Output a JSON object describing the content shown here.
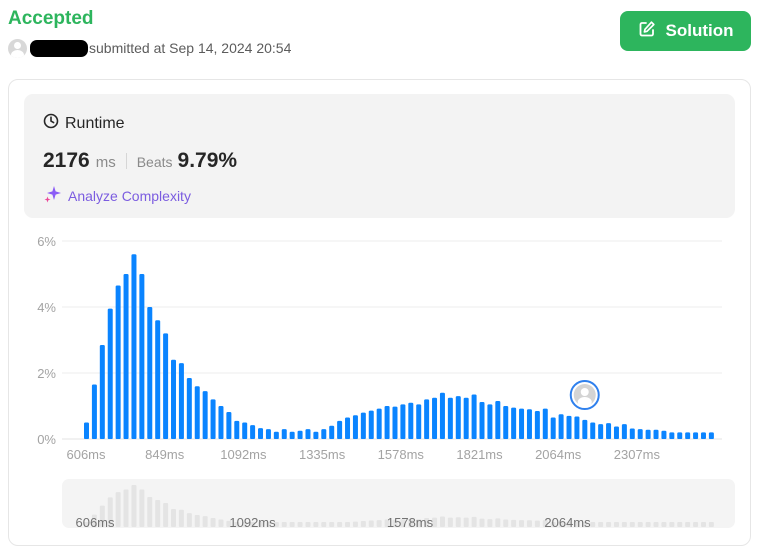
{
  "header": {
    "status": "Accepted",
    "submitted_text": "submitted at Sep 14, 2024 20:54",
    "solution_label": "Solution"
  },
  "runtime": {
    "title": "Runtime",
    "value": "2176",
    "unit": "ms",
    "beats_label": "Beats",
    "beats_value": "9.79%",
    "analyze_label": "Analyze Complexity"
  },
  "colors": {
    "accent_green": "#2db55d",
    "bar_blue": "#0a84ff",
    "analyze_purple": "#7b5ce0",
    "mini_bar_gray": "#e4e4e4"
  },
  "icons": {
    "avatar": "user-avatar-icon",
    "solution": "edit-icon",
    "runtime": "clock-icon",
    "analyze": "sparkle-icon",
    "marker": "user-avatar-icon"
  },
  "chart_data": [
    {
      "type": "bar",
      "ylabel_ticks": [
        "0%",
        "2%",
        "4%",
        "6%"
      ],
      "y_ticks": [
        0,
        2,
        4,
        6
      ],
      "ylim": [
        0,
        6
      ],
      "x_tick_labels": [
        "606ms",
        "849ms",
        "1092ms",
        "1335ms",
        "1578ms",
        "1821ms",
        "2064ms",
        "2307ms"
      ],
      "grid": true,
      "values": [
        0.5,
        1.65,
        2.85,
        3.95,
        4.65,
        5.0,
        5.6,
        5.0,
        4.0,
        3.6,
        3.2,
        2.4,
        2.3,
        1.85,
        1.6,
        1.45,
        1.2,
        1.0,
        0.82,
        0.55,
        0.5,
        0.42,
        0.33,
        0.3,
        0.22,
        0.3,
        0.22,
        0.25,
        0.3,
        0.22,
        0.3,
        0.4,
        0.55,
        0.65,
        0.72,
        0.8,
        0.86,
        0.92,
        1.0,
        0.98,
        1.05,
        1.1,
        1.05,
        1.2,
        1.25,
        1.4,
        1.25,
        1.3,
        1.25,
        1.35,
        1.12,
        1.05,
        1.15,
        1.0,
        0.95,
        0.92,
        0.9,
        0.85,
        0.92,
        0.65,
        0.75,
        0.7,
        0.68,
        0.58,
        0.5,
        0.45,
        0.48,
        0.38,
        0.45,
        0.32,
        0.3,
        0.28,
        0.28,
        0.25,
        0.2,
        0.2,
        0.2,
        0.2,
        0.2,
        0.2
      ],
      "highlighted_bin": 64
    },
    {
      "type": "bar",
      "x_tick_labels": [
        "606ms",
        "1092ms",
        "1578ms",
        "2064ms"
      ]
    }
  ]
}
